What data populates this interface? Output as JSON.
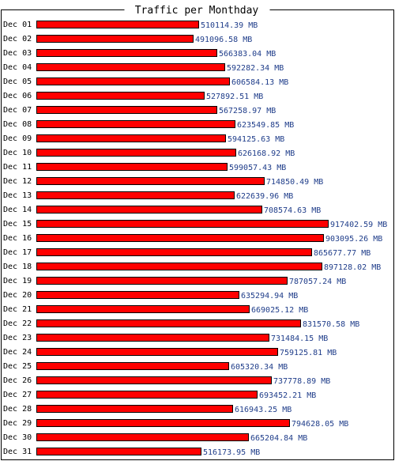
{
  "chart_data": {
    "type": "bar",
    "orientation": "horizontal",
    "title": "Traffic per Monthday",
    "unit": "MB",
    "bar_color": "#ff0000",
    "value_label_color": "#1f3d8a",
    "categories": [
      "Dec 01",
      "Dec 02",
      "Dec 03",
      "Dec 04",
      "Dec 05",
      "Dec 06",
      "Dec 07",
      "Dec 08",
      "Dec 09",
      "Dec 10",
      "Dec 11",
      "Dec 12",
      "Dec 13",
      "Dec 14",
      "Dec 15",
      "Dec 16",
      "Dec 17",
      "Dec 18",
      "Dec 19",
      "Dec 20",
      "Dec 21",
      "Dec 22",
      "Dec 23",
      "Dec 24",
      "Dec 25",
      "Dec 26",
      "Dec 27",
      "Dec 28",
      "Dec 29",
      "Dec 30",
      "Dec 31"
    ],
    "values": [
      510114.39,
      491096.58,
      566383.04,
      592282.34,
      606584.13,
      527892.51,
      567258.97,
      623549.85,
      594125.63,
      626168.92,
      599057.43,
      714850.49,
      622639.96,
      708574.63,
      917402.59,
      903095.26,
      865677.77,
      897128.02,
      787057.24,
      635294.94,
      669025.12,
      831570.58,
      731484.15,
      759125.81,
      605320.34,
      737778.89,
      693452.21,
      616943.25,
      794628.05,
      665204.84,
      516173.95
    ],
    "value_labels": [
      "510114.39 MB",
      "491096.58 MB",
      "566383.04 MB",
      "592282.34 MB",
      "606584.13 MB",
      "527892.51 MB",
      "567258.97 MB",
      "623549.85 MB",
      "594125.63 MB",
      "626168.92 MB",
      "599057.43 MB",
      "714850.49 MB",
      "622639.96 MB",
      "708574.63 MB",
      "917402.59 MB",
      "903095.26 MB",
      "865677.77 MB",
      "897128.02 MB",
      "787057.24 MB",
      "635294.94 MB",
      "669025.12 MB",
      "831570.58 MB",
      "731484.15 MB",
      "759125.81 MB",
      "605320.34 MB",
      "737778.89 MB",
      "693452.21 MB",
      "616943.25 MB",
      "794628.05 MB",
      "665204.84 MB",
      "516173.95 MB"
    ],
    "xlim": [
      0,
      917402.59
    ]
  }
}
